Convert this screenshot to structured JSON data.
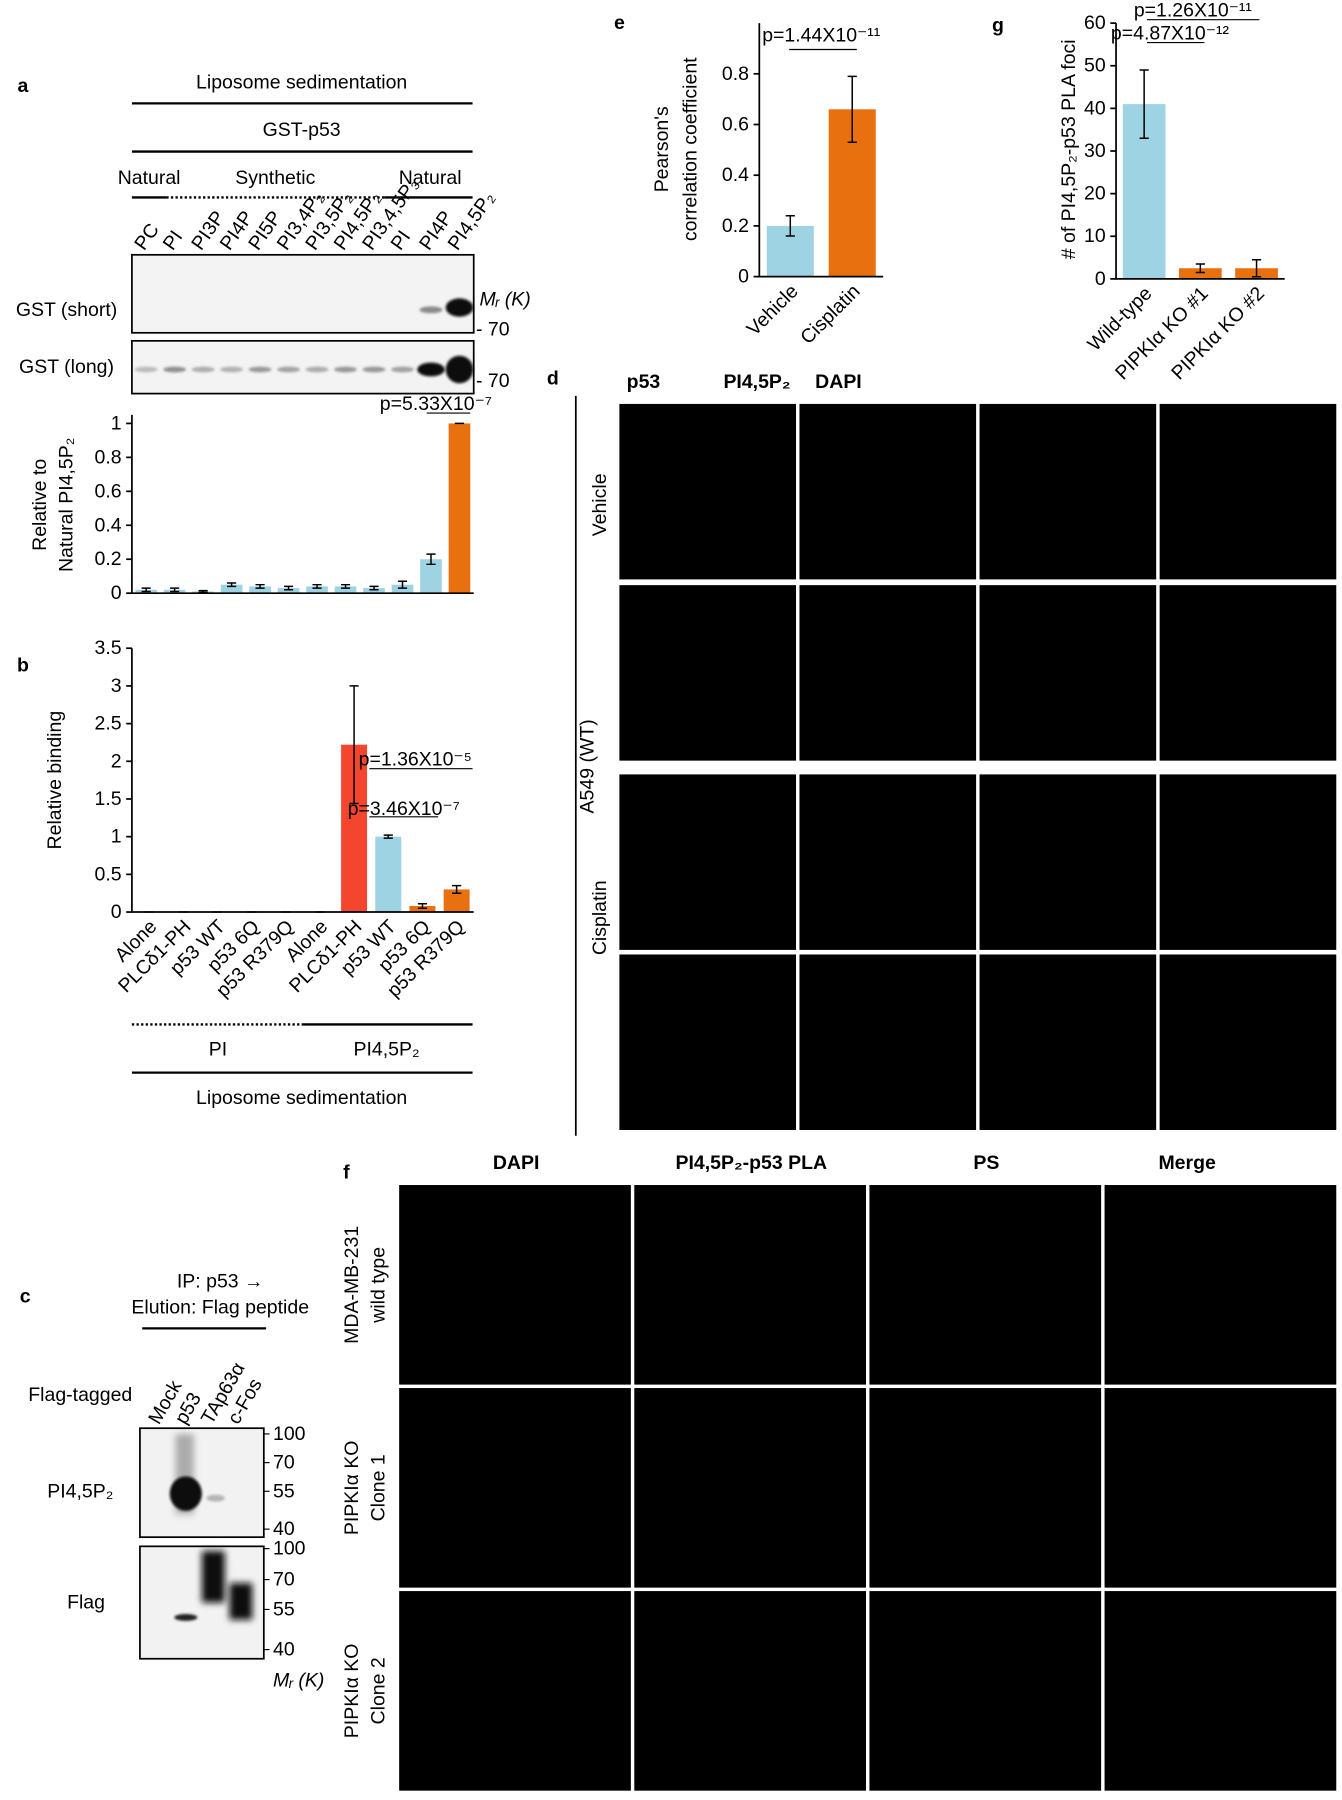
{
  "panel_letters": [
    "a",
    "b",
    "c",
    "d",
    "e",
    "f",
    "g"
  ],
  "panel_a": {
    "header": "Liposome sedimentation",
    "protein": "GST-p53",
    "groups": [
      "Natural",
      "Synthetic",
      "Natural"
    ],
    "blots": [
      "GST (short)",
      "GST (long)"
    ],
    "marker_unit": "Mᵣ (K)",
    "markers": [
      "- 70",
      "- 70"
    ]
  },
  "panel_b": {
    "lipids": [
      "PI",
      "PI4,5P₂"
    ],
    "footer": "Liposome sedimentation"
  },
  "panel_c": {
    "header": [
      "IP: p53 →",
      "Elution: Flag peptide"
    ],
    "row_title": "Flag-tagged",
    "lanes": [
      "Mock",
      "p53",
      "TAp63α",
      "c-Fos"
    ],
    "blots": [
      "PI4,5P₂",
      "Flag"
    ],
    "markers": [
      [
        "100",
        "70",
        "55",
        "40"
      ],
      [
        "100",
        "70",
        "55",
        "40"
      ]
    ],
    "marker_unit": "Mᵣ (K)"
  },
  "panel_d": {
    "channels": [
      "p53",
      "PI4,5P₂",
      "DAPI"
    ],
    "cell_line": "A549 (WT)",
    "conditions": [
      "Vehicle",
      "Cisplatin"
    ]
  },
  "panel_f": {
    "columns": [
      "DAPI",
      "PI4,5P₂-p53 PLA",
      "PS",
      "Merge"
    ],
    "rows": [
      [
        "MDA-MB-231",
        "wild type"
      ],
      [
        "PIPKIα KO",
        "Clone 1"
      ],
      [
        "PIPKIα KO",
        "Clone 2"
      ]
    ]
  },
  "chart_data": [
    {
      "type": "bar",
      "categories": [
        "PC",
        "PI",
        "PI3P",
        "PI4P",
        "PI5P",
        "PI3,4P₂",
        "PI3,5P₂",
        "PI4,5P₂",
        "PI3,4,5P₃",
        "PI",
        "PI4P",
        "PI4,5P₂"
      ],
      "values": [
        0.02,
        0.02,
        0.01,
        0.05,
        0.04,
        0.03,
        0.04,
        0.04,
        0.03,
        0.05,
        0.2,
        1
      ],
      "errors": [
        0.01,
        0.01,
        0.005,
        0.01,
        0.01,
        0.01,
        0.01,
        0.01,
        0.01,
        0.02,
        0.03,
        0
      ],
      "colors": [
        "#9ed3e3",
        "#9ed3e3",
        "#9ed3e3",
        "#9ed3e3",
        "#9ed3e3",
        "#9ed3e3",
        "#9ed3e3",
        "#9ed3e3",
        "#9ed3e3",
        "#9ed3e3",
        "#9ed3e3",
        "#e8700f"
      ],
      "ylabel": [
        "Relative to",
        "Natural PI4,5P₂"
      ],
      "ylim": [
        0,
        1.05
      ],
      "yticks": [
        0,
        0.2,
        0.4,
        0.6,
        0.8,
        1
      ],
      "annotations": [
        "p=5.33X10⁻⁷"
      ]
    },
    {
      "type": "bar",
      "categories": [
        "Alone",
        "PLCδ1-PH",
        "p53 WT",
        "p53 6Q",
        "p53 R379Q",
        "Alone",
        "PLCδ1-PH",
        "p53 WT",
        "p53 6Q",
        "p53 R379Q"
      ],
      "values": [
        0,
        0,
        0,
        0,
        0,
        0,
        2.22,
        1,
        0.08,
        0.3
      ],
      "errors": [
        0,
        0,
        0,
        0,
        0,
        0,
        0.78,
        0.02,
        0.03,
        0.05
      ],
      "colors": [
        "#e8700f",
        "#f4452f",
        "#9ed3e3",
        "#e8700f",
        "#e8700f",
        "#e8700f",
        "#f4452f",
        "#9ed3e3",
        "#e8700f",
        "#e8700f"
      ],
      "ylabel": [
        "Relative binding"
      ],
      "ylim": [
        0,
        3.5
      ],
      "yticks": [
        0,
        0.5,
        1,
        1.5,
        2,
        2.5,
        3,
        3.5
      ],
      "annotations": [
        "p=1.36X10⁻⁵",
        "p=3.46X10⁻⁷"
      ]
    },
    {
      "type": "bar",
      "categories": [
        "Vehicle",
        "Cisplatin"
      ],
      "values": [
        0.2,
        0.66
      ],
      "errors": [
        0.04,
        0.13
      ],
      "colors": [
        "#9ed3e3",
        "#e8700f"
      ],
      "ylabel": [
        "Pearson's",
        "correlation coefficient"
      ],
      "ylim": [
        0,
        1
      ],
      "yticks": [
        0,
        0.2,
        0.4,
        0.6,
        0.8
      ],
      "annotations": [
        "p=1.44X10⁻¹¹"
      ]
    },
    {
      "type": "bar",
      "categories": [
        "Wild-type",
        "PIPKIα KO #1",
        "PIPKIα KO #2"
      ],
      "values": [
        41,
        2.5,
        2.5
      ],
      "errors": [
        8,
        1,
        2
      ],
      "colors": [
        "#9ed3e3",
        "#e8700f",
        "#e8700f"
      ],
      "ylabel": [
        "# of PI4,5P₂-p53 PLA foci"
      ],
      "ylim": [
        0,
        60
      ],
      "yticks": [
        0,
        10,
        20,
        30,
        40,
        50,
        60
      ],
      "annotations": [
        "p=1.26X10⁻¹¹",
        "p=4.87X10⁻¹²"
      ]
    }
  ]
}
